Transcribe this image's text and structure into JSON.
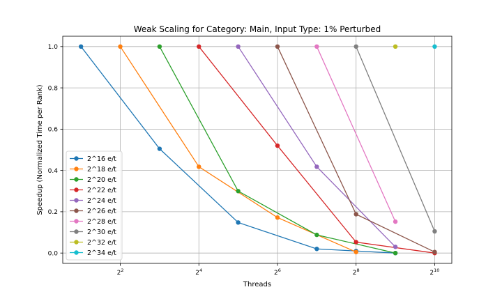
{
  "chart_data": {
    "type": "line",
    "title": "Weak Scaling for Category: Main, Input Type: 1% Perturbed",
    "xlabel": "Threads",
    "ylabel": "Speedup (Normalized Time per Rank)",
    "x_scale": "log2",
    "xlim": [
      1.45,
      1385
    ],
    "ylim": [
      -0.05,
      1.05
    ],
    "x_ticks": [
      {
        "value": 4,
        "base": "2",
        "exp": "2"
      },
      {
        "value": 16,
        "base": "2",
        "exp": "4"
      },
      {
        "value": 64,
        "base": "2",
        "exp": "6"
      },
      {
        "value": 256,
        "base": "2",
        "exp": "8"
      },
      {
        "value": 1024,
        "base": "2",
        "exp": "10"
      }
    ],
    "y_ticks": [
      "0.0",
      "0.2",
      "0.4",
      "0.6",
      "0.8",
      "1.0"
    ],
    "grid": true,
    "legend_position": "lower-left",
    "series": [
      {
        "name": "2^16 e/t",
        "color": "#1f77b4",
        "x": [
          2,
          8,
          32,
          128,
          256,
          512
        ],
        "y": [
          1.0,
          0.505,
          0.148,
          0.02,
          0.01,
          0.0
        ]
      },
      {
        "name": "2^18 e/t",
        "color": "#ff7f0e",
        "x": [
          4,
          16,
          64,
          256
        ],
        "y": [
          1.0,
          0.418,
          0.172,
          0.005
        ]
      },
      {
        "name": "2^20 e/t",
        "color": "#2ca02c",
        "x": [
          8,
          32,
          128,
          512
        ],
        "y": [
          1.0,
          0.3,
          0.088,
          0.0
        ]
      },
      {
        "name": "2^22 e/t",
        "color": "#d62728",
        "x": [
          16,
          64,
          256,
          1024
        ],
        "y": [
          1.0,
          0.52,
          0.053,
          0.0
        ]
      },
      {
        "name": "2^24 e/t",
        "color": "#9467bd",
        "x": [
          32,
          128,
          512
        ],
        "y": [
          1.0,
          0.418,
          0.03
        ]
      },
      {
        "name": "2^26 e/t",
        "color": "#8c564b",
        "x": [
          64,
          256,
          1024
        ],
        "y": [
          1.0,
          0.188,
          0.005
        ]
      },
      {
        "name": "2^28 e/t",
        "color": "#e377c2",
        "x": [
          128,
          512
        ],
        "y": [
          1.0,
          0.152
        ]
      },
      {
        "name": "2^30 e/t",
        "color": "#7f7f7f",
        "x": [
          256,
          1024
        ],
        "y": [
          1.0,
          0.105
        ]
      },
      {
        "name": "2^32 e/t",
        "color": "#bcbd22",
        "x": [
          512
        ],
        "y": [
          1.0
        ]
      },
      {
        "name": "2^34 e/t",
        "color": "#17becf",
        "x": [
          1024
        ],
        "y": [
          1.0
        ]
      }
    ]
  }
}
